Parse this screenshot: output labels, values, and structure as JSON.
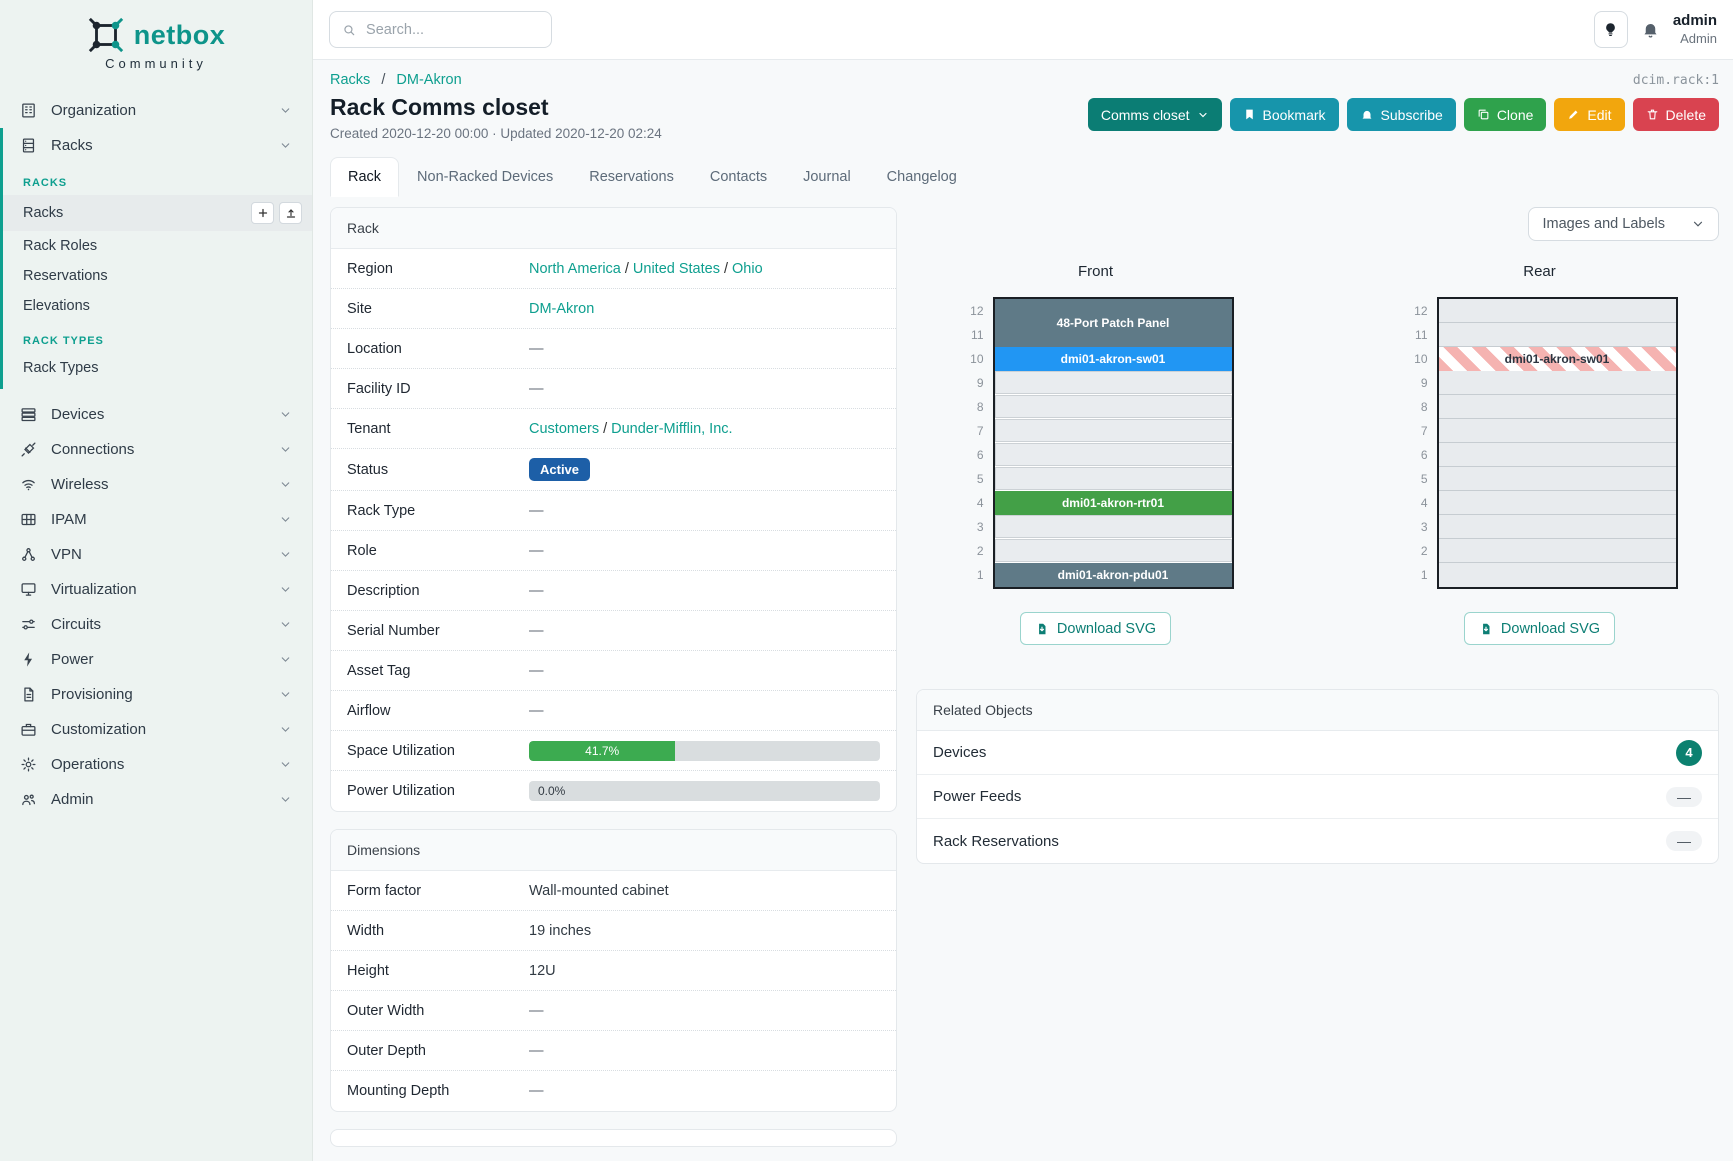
{
  "brand": {
    "name": "netbox",
    "tagline": "Community"
  },
  "misc": {
    "slash": "/"
  },
  "topbar": {
    "search_placeholder": "Search...",
    "user": {
      "name": "admin",
      "role": "Admin"
    }
  },
  "sidebar": {
    "organization": {
      "label": "Organization"
    },
    "racks_group": {
      "label": "Racks"
    },
    "sections": [
      {
        "heading": "RACKS",
        "links": [
          {
            "label": "Racks",
            "active": true
          },
          {
            "label": "Rack Roles"
          },
          {
            "label": "Reservations"
          },
          {
            "label": "Elevations"
          }
        ]
      },
      {
        "heading": "RACK TYPES",
        "links": [
          {
            "label": "Rack Types"
          }
        ]
      }
    ],
    "menu": [
      {
        "label": "Devices"
      },
      {
        "label": "Connections"
      },
      {
        "label": "Wireless"
      },
      {
        "label": "IPAM"
      },
      {
        "label": "VPN"
      },
      {
        "label": "Virtualization"
      },
      {
        "label": "Circuits"
      },
      {
        "label": "Power"
      },
      {
        "label": "Provisioning"
      },
      {
        "label": "Customization"
      },
      {
        "label": "Operations"
      },
      {
        "label": "Admin"
      }
    ]
  },
  "header": {
    "breadcrumb": {
      "parent": "Racks",
      "current": "DM-Akron"
    },
    "object_id": "dcim.rack:1",
    "title": "Rack Comms closet",
    "meta": "Created 2020-12-20 00:00 · Updated 2020-12-20 02:24",
    "actions": {
      "group": "Comms closet",
      "bookmark": "Bookmark",
      "subscribe": "Subscribe",
      "clone": "Clone",
      "edit": "Edit",
      "delete": "Delete"
    }
  },
  "tabs": [
    {
      "label": "Rack",
      "active": true
    },
    {
      "label": "Non-Racked Devices"
    },
    {
      "label": "Reservations"
    },
    {
      "label": "Contacts"
    },
    {
      "label": "Journal"
    },
    {
      "label": "Changelog"
    }
  ],
  "rack_panel": {
    "title": "Rack",
    "region": {
      "label": "Region",
      "links": [
        "North America",
        "United States",
        "Ohio"
      ]
    },
    "site": {
      "label": "Site",
      "link": "DM-Akron"
    },
    "location": {
      "label": "Location",
      "value": "—"
    },
    "facility_id": {
      "label": "Facility ID",
      "value": "—"
    },
    "tenant": {
      "label": "Tenant",
      "links": [
        "Customers",
        "Dunder-Mifflin, Inc."
      ]
    },
    "status": {
      "label": "Status",
      "badge": "Active",
      "badge_color": "#1d5fa7"
    },
    "rack_type": {
      "label": "Rack Type",
      "value": "—"
    },
    "role": {
      "label": "Role",
      "value": "—"
    },
    "description": {
      "label": "Description",
      "value": "—"
    },
    "serial_number": {
      "label": "Serial Number",
      "value": "—"
    },
    "asset_tag": {
      "label": "Asset Tag",
      "value": "—"
    },
    "airflow": {
      "label": "Airflow",
      "value": "—"
    },
    "space_utilization": {
      "label": "Space Utilization",
      "percent": 41.7,
      "text": "41.7%",
      "bar_color": "#3cab50"
    },
    "power_utilization": {
      "label": "Power Utilization",
      "percent": 0,
      "text": "0.0%"
    }
  },
  "dimensions_panel": {
    "title": "Dimensions",
    "form_factor": {
      "label": "Form factor",
      "value": "Wall-mounted cabinet"
    },
    "width": {
      "label": "Width",
      "value": "19 inches"
    },
    "height": {
      "label": "Height",
      "value": "12U"
    },
    "outer_width": {
      "label": "Outer Width",
      "value": "—"
    },
    "outer_depth": {
      "label": "Outer Depth",
      "value": "—"
    },
    "mounting_depth": {
      "label": "Mounting Depth",
      "value": "—"
    }
  },
  "elevation": {
    "view_select": "Images and Labels",
    "download_label": "Download SVG",
    "unit_numbers": [
      12,
      11,
      10,
      9,
      8,
      7,
      6,
      5,
      4,
      3,
      2,
      1
    ],
    "front": {
      "title": "Front",
      "slots": [
        {
          "span": 2,
          "label": "48-Port Patch Panel",
          "color": "#5f7a87"
        },
        {
          "span": 1,
          "label": "dmi01-akron-sw01",
          "color": "#2196f3"
        },
        {
          "span": 1,
          "empty": true
        },
        {
          "span": 1,
          "empty": true
        },
        {
          "span": 1,
          "empty": true
        },
        {
          "span": 1,
          "empty": true
        },
        {
          "span": 1,
          "empty": true
        },
        {
          "span": 1,
          "label": "dmi01-akron-rtr01",
          "color": "#43a047"
        },
        {
          "span": 1,
          "empty": true
        },
        {
          "span": 1,
          "empty": true
        },
        {
          "span": 1,
          "label": "dmi01-akron-pdu01",
          "color": "#5f7a87"
        }
      ]
    },
    "rear": {
      "title": "Rear",
      "slots": [
        {
          "span": 1,
          "empty": true
        },
        {
          "span": 1,
          "empty": true
        },
        {
          "span": 1,
          "label": "dmi01-akron-sw01",
          "striped": true
        },
        {
          "span": 1,
          "empty": true
        },
        {
          "span": 1,
          "empty": true
        },
        {
          "span": 1,
          "empty": true
        },
        {
          "span": 1,
          "empty": true
        },
        {
          "span": 1,
          "empty": true
        },
        {
          "span": 1,
          "empty": true
        },
        {
          "span": 1,
          "empty": true
        },
        {
          "span": 1,
          "empty": true
        },
        {
          "span": 1,
          "empty": true
        }
      ]
    }
  },
  "related_panel": {
    "title": "Related Objects",
    "rows": [
      {
        "label": "Devices",
        "count": "4"
      },
      {
        "label": "Power Feeds",
        "value": "—"
      },
      {
        "label": "Rack Reservations",
        "value": "—"
      }
    ]
  }
}
